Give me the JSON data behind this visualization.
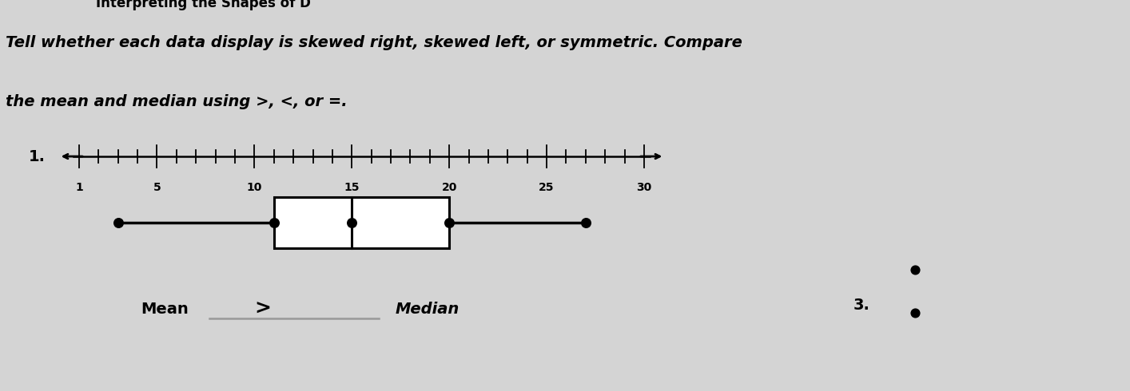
{
  "background_color": "#d4d4d4",
  "instruction_line1": "Tell whether each data display is skewed right, skewed left, or symmetric. Compare",
  "instruction_line2": "the mean and median using >, <, or =.",
  "number_line_ticks_labeled": [
    1,
    5,
    10,
    15,
    20,
    25,
    30
  ],
  "nl_data_min": 1,
  "nl_data_max": 30,
  "boxplot_min": 3,
  "boxplot_q1": 11,
  "boxplot_median": 15,
  "boxplot_q3": 20,
  "boxplot_max": 27,
  "mean_label": "Mean",
  "median_label": "Median",
  "comparison_symbol": ">",
  "problem_number": "1.",
  "problem3_number": "3."
}
